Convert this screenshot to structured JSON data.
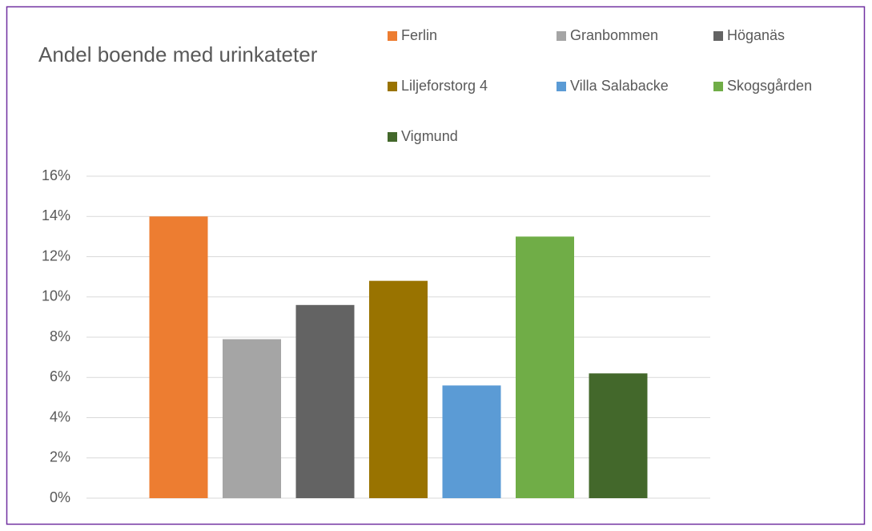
{
  "chart_data": {
    "type": "bar",
    "title": "Andel boende med urinkateter",
    "categories": [
      null
    ],
    "series": [
      {
        "name": "Ferlin",
        "color": "#ED7D31",
        "values": [
          14.0
        ]
      },
      {
        "name": "Granbommen",
        "color": "#A5A5A5",
        "values": [
          7.9
        ]
      },
      {
        "name": "Höganäs",
        "color": "#636363",
        "values": [
          9.6
        ]
      },
      {
        "name": "Liljeforstorg 4",
        "color": "#997300",
        "values": [
          10.8
        ]
      },
      {
        "name": "Villa Salabacke",
        "color": "#5B9BD5",
        "values": [
          5.6
        ]
      },
      {
        "name": "Skogsgården",
        "color": "#70AD47",
        "values": [
          13.0
        ]
      },
      {
        "name": "Vigmund",
        "color": "#43682B",
        "values": [
          6.2
        ]
      }
    ],
    "ylim": [
      0,
      16
    ],
    "yticks": [
      {
        "value": 0,
        "label": "0%"
      },
      {
        "value": 2,
        "label": "2%"
      },
      {
        "value": 4,
        "label": "4%"
      },
      {
        "value": 6,
        "label": "6%"
      },
      {
        "value": 8,
        "label": "8%"
      },
      {
        "value": 10,
        "label": "10%"
      },
      {
        "value": 12,
        "label": "12%"
      },
      {
        "value": 14,
        "label": "14%"
      },
      {
        "value": 16,
        "label": "16%"
      }
    ],
    "grid": true,
    "legend": "top"
  }
}
